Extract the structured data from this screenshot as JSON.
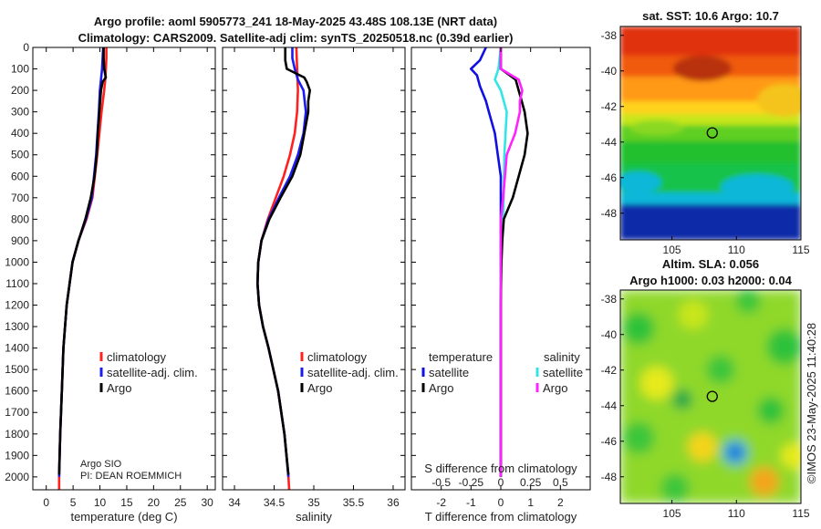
{
  "header": {
    "title_line1": "Argo profile: aoml 5905773_241 18-May-2025 43.48S 108.13E (NRT data)",
    "title_line2": "Climatology: CARS2009. Satellite-adj clim: synTS_20250518.nc (0.39d earlier)"
  },
  "colors": {
    "climatology": "#ff2020",
    "satellite": "#1c1cf0",
    "argo": "#000000",
    "sat_temp_diff": "#1010e0",
    "sat_sal_diff": "#33e6e6",
    "argo_sal_diff": "#ff22ff"
  },
  "chart_data": [
    {
      "id": "temperature",
      "type": "line",
      "xlabel": "temperature (deg C)",
      "ylabel": "",
      "xlim": [
        -2.5,
        31.5
      ],
      "ylim": [
        2060,
        0
      ],
      "xticks": [
        0,
        5,
        10,
        15,
        20,
        25,
        30
      ],
      "yticks": [
        0,
        100,
        200,
        300,
        400,
        500,
        600,
        700,
        800,
        900,
        1000,
        1100,
        1200,
        1300,
        1400,
        1500,
        1600,
        1700,
        1800,
        1900,
        2000
      ],
      "legend": [
        "climatology",
        "satellite-adj. clim.",
        "Argo"
      ],
      "footnote": [
        "Argo SIO",
        "PI: DEAN ROEMMICH"
      ],
      "series": [
        {
          "name": "climatology",
          "depth": [
            0,
            50,
            100,
            150,
            200,
            300,
            500,
            700,
            800,
            900,
            1000,
            1200,
            1400,
            1600,
            1800,
            2000,
            2060
          ],
          "values": [
            11.2,
            11.2,
            11.1,
            11.0,
            10.8,
            10.3,
            9.5,
            8.6,
            7.5,
            6.0,
            4.9,
            3.8,
            3.2,
            2.9,
            2.6,
            2.4,
            2.4
          ]
        },
        {
          "name": "satellite-adj. clim.",
          "depth": [
            0,
            50,
            100,
            150,
            200,
            300,
            500,
            700,
            800,
            900,
            1000,
            1200,
            1400,
            1600,
            1800,
            2000
          ],
          "values": [
            10.6,
            10.5,
            10.4,
            10.2,
            10.0,
            9.8,
            9.3,
            8.5,
            7.4,
            6.0,
            4.9,
            3.8,
            3.2,
            2.9,
            2.6,
            2.4
          ]
        },
        {
          "name": "Argo",
          "depth": [
            0,
            50,
            100,
            140,
            160,
            200,
            300,
            400,
            500,
            600,
            700,
            800,
            900,
            1000,
            1200,
            1400,
            1600,
            1800,
            1990
          ],
          "values": [
            10.7,
            10.7,
            10.8,
            11.1,
            10.5,
            10.2,
            9.9,
            9.6,
            9.4,
            9.0,
            8.3,
            7.3,
            6.0,
            4.9,
            3.8,
            3.2,
            2.9,
            2.6,
            2.4
          ]
        }
      ]
    },
    {
      "id": "salinity",
      "type": "line",
      "xlabel": "salinity",
      "xlim": [
        33.85,
        36.15
      ],
      "xticks": [
        34,
        34.5,
        35,
        35.5,
        36
      ],
      "legend": [
        "climatology",
        "satellite-adj. clim.",
        "Argo"
      ],
      "series": [
        {
          "name": "climatology",
          "depth": [
            0,
            100,
            200,
            300,
            400,
            500,
            600,
            700,
            800,
            900,
            1000,
            1100,
            1200,
            1300,
            1400,
            1600,
            1800,
            2000,
            2060
          ],
          "values": [
            34.78,
            34.79,
            34.8,
            34.79,
            34.76,
            34.7,
            34.62,
            34.52,
            34.42,
            34.34,
            34.3,
            34.29,
            34.31,
            34.36,
            34.43,
            34.55,
            34.63,
            34.68,
            34.69
          ]
        },
        {
          "name": "satellite-adj. clim.",
          "depth": [
            0,
            50,
            100,
            150,
            200,
            300,
            400,
            500,
            600,
            700,
            800,
            900,
            1000,
            1100,
            1200,
            1300,
            1400,
            1600,
            1800,
            2000
          ],
          "values": [
            34.73,
            34.73,
            34.76,
            34.8,
            34.87,
            34.9,
            34.87,
            34.8,
            34.7,
            34.56,
            34.43,
            34.34,
            34.3,
            34.29,
            34.31,
            34.36,
            34.43,
            34.55,
            34.63,
            34.68
          ]
        },
        {
          "name": "Argo",
          "depth": [
            0,
            60,
            100,
            140,
            160,
            200,
            250,
            300,
            400,
            500,
            600,
            700,
            800,
            900,
            1000,
            1100,
            1200,
            1300,
            1400,
            1600,
            1800,
            1990
          ],
          "values": [
            34.64,
            34.64,
            34.66,
            34.88,
            34.91,
            34.95,
            34.93,
            34.93,
            34.88,
            34.83,
            34.73,
            34.58,
            34.44,
            34.34,
            34.3,
            34.29,
            34.31,
            34.36,
            34.43,
            34.55,
            34.63,
            34.68
          ]
        }
      ]
    },
    {
      "id": "difference",
      "type": "line",
      "xlabel": "T difference from climatology",
      "s_label": "S difference from climatology",
      "xlim": [
        -3.0,
        3.0
      ],
      "xticks": [
        -2,
        -1,
        0,
        1,
        2
      ],
      "s_ticks": [
        "-0.5",
        "-0.25",
        "0",
        "0.25",
        "0.5"
      ],
      "s_tick_values": [
        -0.5,
        -0.25,
        0,
        0.25,
        0.5
      ],
      "s_scale_note": "S difference plotted on same axis with 0.25 = 1 degree",
      "legend_left_title": "temperature",
      "legend_right_title": "salinity",
      "legend_items": [
        "satellite",
        "Argo",
        "satellite",
        "Argo"
      ],
      "series": [
        {
          "name": "temperature satellite",
          "depth": [
            0,
            60,
            100,
            130,
            180,
            250,
            300,
            400,
            500,
            600,
            700,
            800,
            900,
            1000,
            2000
          ],
          "values": [
            -0.5,
            -0.7,
            -1.0,
            -0.8,
            -0.7,
            -0.5,
            -0.4,
            -0.2,
            -0.1,
            0.0,
            0.0,
            0.0,
            0.0,
            0.0,
            0.0
          ]
        },
        {
          "name": "salinity satellite",
          "depth": [
            0,
            100,
            150,
            200,
            300,
            500,
            800,
            1000,
            1400,
            2000
          ],
          "values": [
            0.0,
            -0.02,
            -0.05,
            0.0,
            0.05,
            0.03,
            0.02,
            0.0,
            0.0,
            0.0
          ]
        },
        {
          "name": "temperature Argo",
          "depth": [
            0,
            100,
            150,
            200,
            250,
            300,
            400,
            500,
            600,
            700,
            800,
            900,
            1000,
            1100,
            1200,
            1300,
            1400,
            1600,
            1800,
            2000
          ],
          "values": [
            0.0,
            0.0,
            0.5,
            0.6,
            0.7,
            0.8,
            0.9,
            0.8,
            0.6,
            0.4,
            0.1,
            0.05,
            0.02,
            0.01,
            0.0,
            0.0,
            0.0,
            0.0,
            0.0,
            0.0
          ]
        },
        {
          "name": "salinity Argo",
          "depth": [
            0,
            100,
            150,
            200,
            250,
            300,
            400,
            500,
            700,
            800,
            900,
            1000,
            1400,
            2000
          ],
          "values": [
            0.0,
            0.0,
            0.15,
            0.18,
            0.16,
            0.16,
            0.12,
            0.05,
            0.02,
            0.0,
            0.0,
            0.0,
            0.0,
            0.0
          ]
        }
      ]
    },
    {
      "id": "sst_map",
      "type": "heatmap",
      "title": "sat. SST: 10.6 Argo: 10.7",
      "xlim": [
        101,
        115
      ],
      "ylim": [
        -49.5,
        -37.5
      ],
      "xticks": [
        105,
        110,
        115
      ],
      "yticks": [
        -38,
        -40,
        -42,
        -44,
        -46,
        -48
      ],
      "marker": {
        "lon": 108.13,
        "lat": -43.48
      }
    },
    {
      "id": "sla_map",
      "type": "heatmap",
      "title_line1": "Altim. SLA: 0.056",
      "title_line2": "Argo h1000: 0.03 h2000: 0.04",
      "xlim": [
        101,
        115
      ],
      "ylim": [
        -49.5,
        -37.5
      ],
      "xticks": [
        105,
        110,
        115
      ],
      "yticks": [
        -38,
        -40,
        -42,
        -44,
        -46,
        -48
      ],
      "marker": {
        "lon": 108.13,
        "lat": -43.48
      }
    }
  ],
  "timestamp": "©IMOS 23-May-2025 11:40:28"
}
